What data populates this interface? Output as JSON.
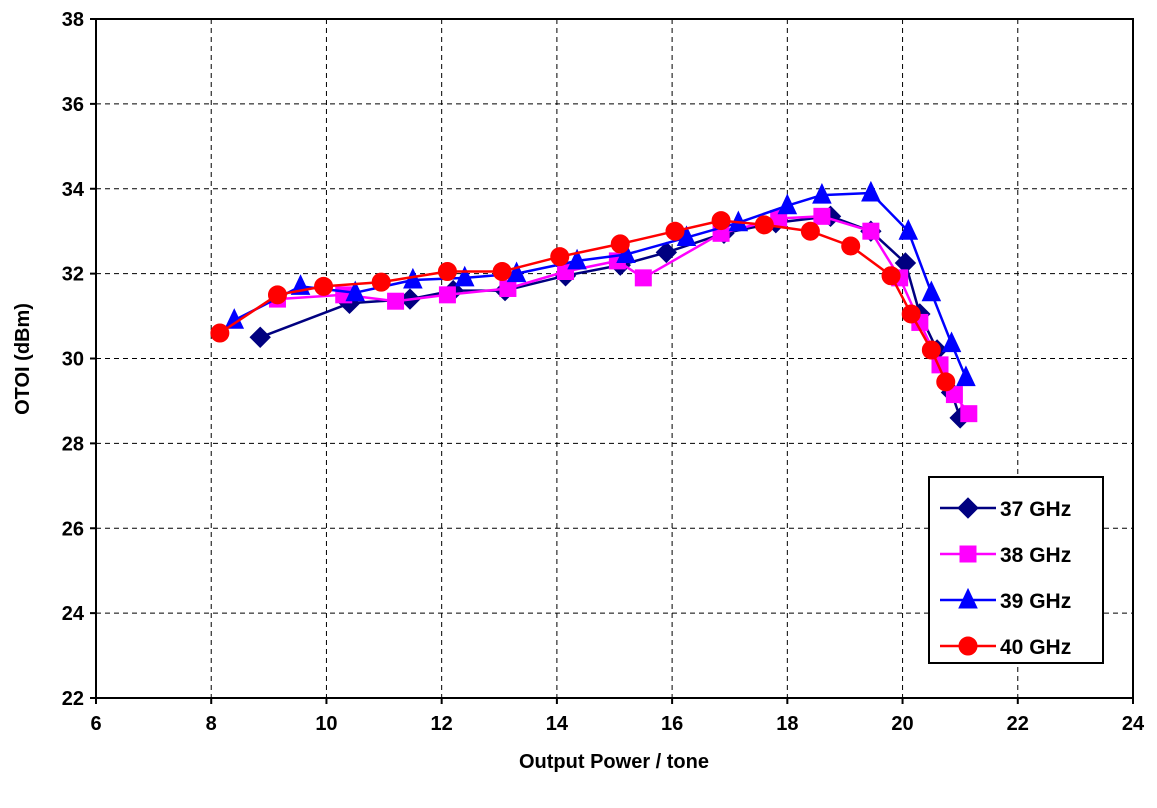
{
  "chart_data": {
    "type": "line",
    "xlabel": "Output Power / tone",
    "ylabel": "OTOI (dBm)",
    "xlim": [
      6,
      24
    ],
    "ylim": [
      22,
      38
    ],
    "x_ticks": [
      "6",
      "8",
      "10",
      "12",
      "14",
      "16",
      "18",
      "20",
      "22",
      "24"
    ],
    "y_ticks": [
      "22",
      "24",
      "26",
      "28",
      "30",
      "32",
      "34",
      "36",
      "38"
    ],
    "grid": true,
    "legend_position": "bottom-right",
    "series": [
      {
        "name": "37 GHz",
        "color": "#000080",
        "marker": "diamond",
        "points": [
          [
            8.85,
            30.5
          ],
          [
            10.4,
            31.3
          ],
          [
            11.45,
            31.4
          ],
          [
            12.2,
            31.6
          ],
          [
            13.1,
            31.6
          ],
          [
            14.15,
            31.95
          ],
          [
            15.1,
            32.2
          ],
          [
            15.9,
            32.5
          ],
          [
            16.9,
            32.95
          ],
          [
            17.8,
            33.2
          ],
          [
            18.75,
            33.35
          ],
          [
            19.45,
            33.0
          ],
          [
            20.05,
            32.25
          ],
          [
            20.3,
            31.05
          ],
          [
            20.6,
            30.2
          ],
          [
            20.85,
            29.2
          ],
          [
            21.0,
            28.6
          ]
        ]
      },
      {
        "name": "38 GHz",
        "color": "#FF00FF",
        "marker": "square",
        "points": [
          [
            9.15,
            31.4
          ],
          [
            10.3,
            31.5
          ],
          [
            11.2,
            31.35
          ],
          [
            12.1,
            31.5
          ],
          [
            13.15,
            31.65
          ],
          [
            14.15,
            32.05
          ],
          [
            15.05,
            32.3
          ],
          [
            15.5,
            31.9
          ],
          [
            16.85,
            32.95
          ],
          [
            17.85,
            33.3
          ],
          [
            18.6,
            33.35
          ],
          [
            19.45,
            33.0
          ],
          [
            19.95,
            31.9
          ],
          [
            20.3,
            30.85
          ],
          [
            20.65,
            29.85
          ],
          [
            20.9,
            29.15
          ],
          [
            21.15,
            28.7
          ]
        ]
      },
      {
        "name": "39 GHz",
        "color": "#0000FF",
        "marker": "triangle",
        "points": [
          [
            8.4,
            30.9
          ],
          [
            9.55,
            31.7
          ],
          [
            10.5,
            31.55
          ],
          [
            11.5,
            31.85
          ],
          [
            12.4,
            31.9
          ],
          [
            13.3,
            32.0
          ],
          [
            14.35,
            32.3
          ],
          [
            15.2,
            32.45
          ],
          [
            16.25,
            32.85
          ],
          [
            17.15,
            33.2
          ],
          [
            18.0,
            33.6
          ],
          [
            18.6,
            33.85
          ],
          [
            19.45,
            33.9
          ],
          [
            20.1,
            33.0
          ],
          [
            20.5,
            31.55
          ],
          [
            20.85,
            30.35
          ],
          [
            21.1,
            29.55
          ]
        ]
      },
      {
        "name": "40 GHz",
        "color": "#FF0000",
        "marker": "circle",
        "points": [
          [
            8.15,
            30.6
          ],
          [
            9.15,
            31.5
          ],
          [
            9.95,
            31.7
          ],
          [
            10.95,
            31.8
          ],
          [
            12.1,
            32.05
          ],
          [
            13.05,
            32.05
          ],
          [
            14.05,
            32.4
          ],
          [
            15.1,
            32.7
          ],
          [
            16.05,
            33.0
          ],
          [
            16.85,
            33.25
          ],
          [
            17.6,
            33.15
          ],
          [
            18.4,
            33.0
          ],
          [
            19.1,
            32.65
          ],
          [
            19.8,
            31.95
          ],
          [
            20.15,
            31.05
          ],
          [
            20.5,
            30.2
          ],
          [
            20.75,
            29.45
          ]
        ]
      }
    ]
  }
}
